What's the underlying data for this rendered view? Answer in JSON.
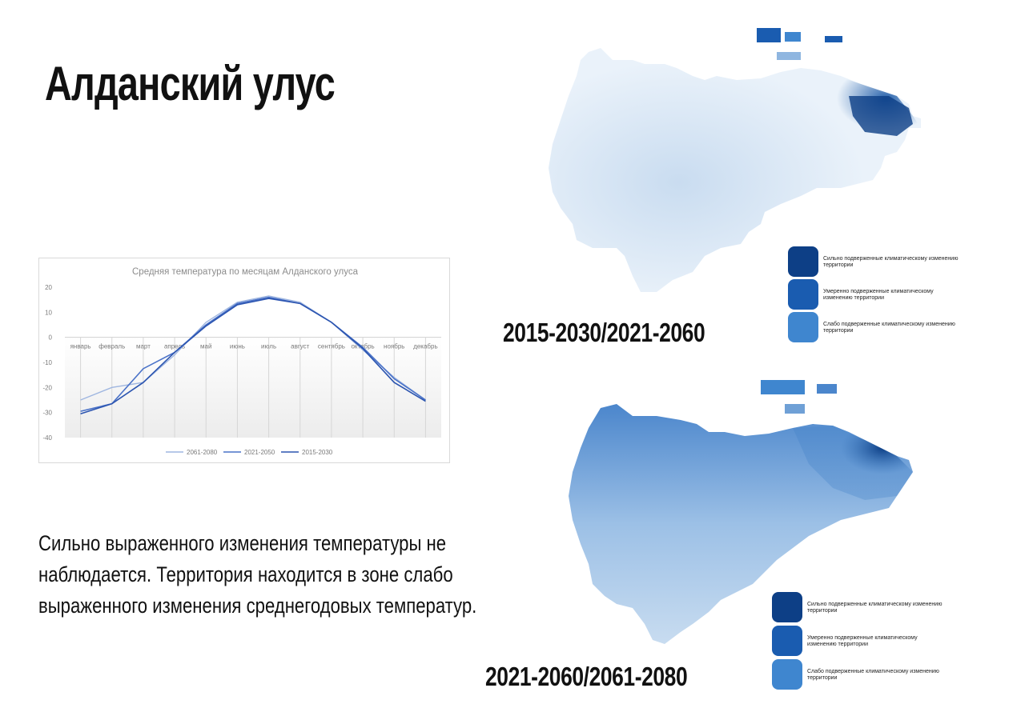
{
  "title": "Алданский улус",
  "body_text": "Сильно выраженного изменения температуры не наблюдается. Территория находится в зоне слабо выраженного изменения среднегодовых температур.",
  "maps": [
    {
      "period_label": "2015-2030/2021-2060",
      "legend": [
        {
          "label": "Сильно подверженные климатическому изменению территории",
          "color": "#0d3f86"
        },
        {
          "label": "Умеренно подверженные климатическому изменению территории",
          "color": "#1a5cb0"
        },
        {
          "label": "Слабо подверженные климатическому изменению территории",
          "color": "#3f86cf"
        }
      ]
    },
    {
      "period_label": "2021-2060/2061-2080",
      "legend": [
        {
          "label": "Сильно подверженные климатическому изменению территории",
          "color": "#0d3f86"
        },
        {
          "label": "Умеренно подверженные климатическому изменению территории",
          "color": "#1a5cb0"
        },
        {
          "label": "Слабо подверженные климатическому изменению территории",
          "color": "#3f86cf"
        }
      ]
    }
  ],
  "chart_data": {
    "type": "line",
    "title": "Средняя температура  по месяцам Алданского улуса",
    "categories": [
      "январь",
      "февраль",
      "март",
      "апрель",
      "май",
      "июнь",
      "июль",
      "август",
      "сентябрь",
      "октябрь",
      "ноябрь",
      "декабрь"
    ],
    "ylim": [
      -40,
      20
    ],
    "yticks": [
      20,
      10,
      0,
      -10,
      -20,
      -30,
      -40
    ],
    "grid": false,
    "legend_position": "bottom",
    "series": [
      {
        "name": "2061-2080",
        "color": "#9fb6e0",
        "values": [
          -25,
          -20,
          -18,
          -7,
          6,
          14,
          16.5,
          14,
          6,
          -5,
          -16,
          -25
        ]
      },
      {
        "name": "2021-2050",
        "color": "#4a72c8",
        "values": [
          -29.5,
          -26.5,
          -12.5,
          -6,
          5,
          13.5,
          16,
          13.5,
          6,
          -4,
          -16.5,
          -25
        ]
      },
      {
        "name": "2015-2030",
        "color": "#2c55b0",
        "values": [
          -30.5,
          -26.5,
          -18,
          -6,
          4.5,
          13,
          15.5,
          13.5,
          6,
          -4.5,
          -18,
          -25.5
        ]
      }
    ]
  }
}
